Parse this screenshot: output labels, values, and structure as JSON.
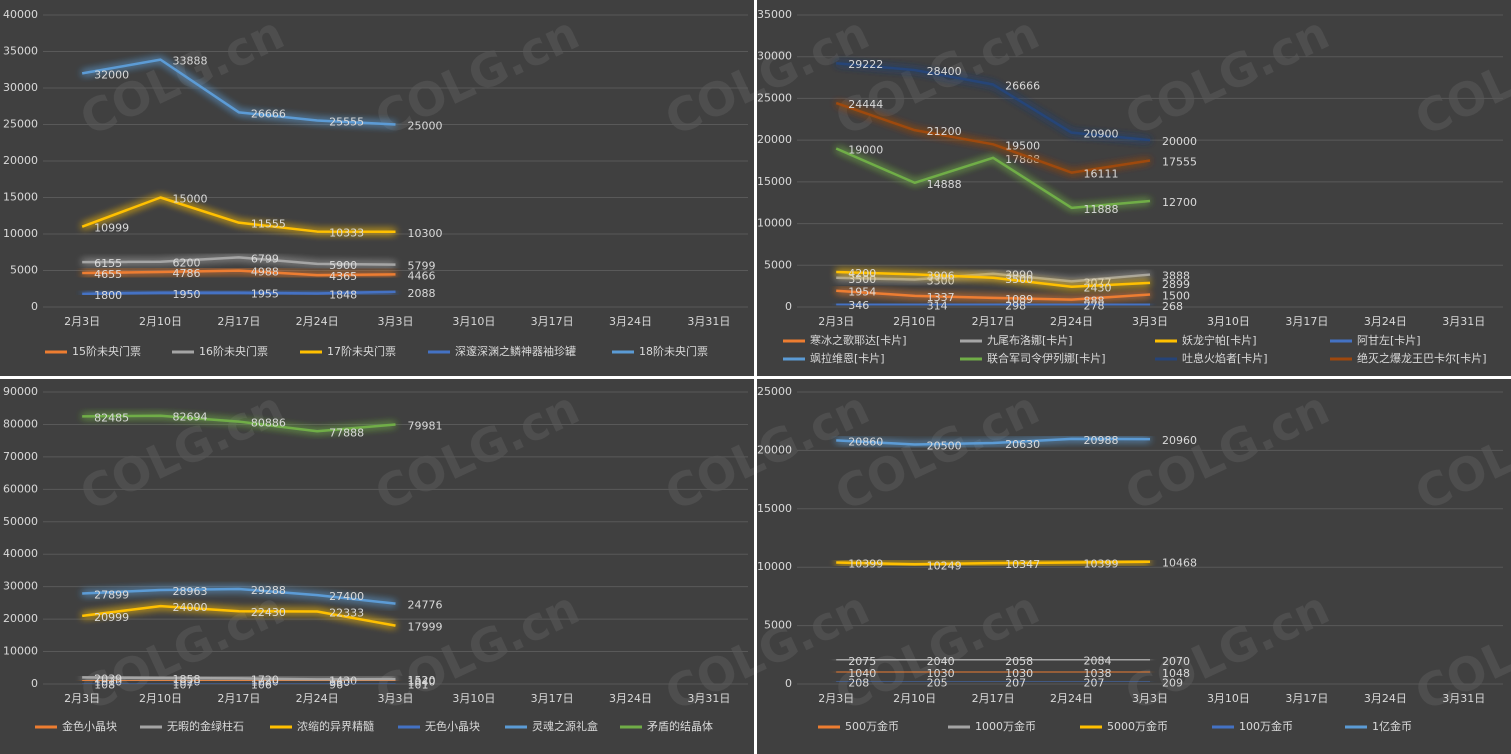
{
  "watermark": "COLG.cn",
  "chart_data": [
    {
      "type": "line",
      "categories": [
        "2月3日",
        "2月10日",
        "2月17日",
        "2月24日",
        "3月3日",
        "3月10日",
        "3月17日",
        "3月24日",
        "3月31日"
      ],
      "ylim": [
        0,
        40000
      ],
      "yticks": [
        0,
        5000,
        10000,
        15000,
        20000,
        25000,
        30000,
        35000,
        40000
      ],
      "grid": true,
      "series": [
        {
          "name": "15阶未央门票",
          "color": "#ed7d31",
          "values": [
            4655,
            4786,
            4988,
            4365,
            4466,
            null,
            null,
            null,
            null
          ]
        },
        {
          "name": "16阶未央门票",
          "color": "#a5a5a5",
          "values": [
            6155,
            6200,
            6799,
            5900,
            5799,
            null,
            null,
            null,
            null
          ]
        },
        {
          "name": "17阶未央门票",
          "color": "#ffc000",
          "values": [
            10999,
            15000,
            11555,
            10333,
            10300,
            null,
            null,
            null,
            null
          ]
        },
        {
          "name": "深邃深渊之鳞神器袖珍罐",
          "color": "#4472c4",
          "values": [
            1800,
            1950,
            1955,
            1848,
            2088,
            null,
            null,
            null,
            null
          ]
        },
        {
          "name": "18阶未央门票",
          "color": "#5b9bd5",
          "values": [
            32000,
            33888,
            26666,
            25555,
            25000,
            null,
            null,
            null,
            null
          ]
        }
      ]
    },
    {
      "type": "line",
      "categories": [
        "2月3日",
        "2月10日",
        "2月17日",
        "2月24日",
        "3月3日",
        "3月10日",
        "3月17日",
        "3月24日",
        "3月31日"
      ],
      "ylim": [
        0,
        35000
      ],
      "yticks": [
        0,
        5000,
        10000,
        15000,
        20000,
        25000,
        30000,
        35000
      ],
      "grid": true,
      "series": [
        {
          "name": "寒冰之歌耶达[卡片]",
          "color": "#ed7d31",
          "values": [
            1954,
            1337,
            1089,
            888,
            1500,
            null,
            null,
            null,
            null
          ]
        },
        {
          "name": "九尾布洛娜[卡片]",
          "color": "#a5a5a5",
          "values": [
            3500,
            3300,
            3990,
            3077,
            3888,
            null,
            null,
            null,
            null
          ]
        },
        {
          "name": "妖龙宁帕[卡片]",
          "color": "#ffc000",
          "values": [
            4200,
            3906,
            3500,
            2430,
            2899,
            null,
            null,
            null,
            null
          ]
        },
        {
          "name": "阿甘左[卡片]",
          "color": "#4472c4",
          "values": [
            346,
            314,
            298,
            278,
            268,
            null,
            null,
            null,
            null
          ]
        },
        {
          "name": "飒拉维恩[卡片]",
          "color": "#5b9bd5",
          "values": [
            null,
            null,
            null,
            null,
            null,
            null,
            null,
            null,
            null
          ]
        },
        {
          "name": "联合军司令伊列娜[卡片]",
          "color": "#70ad47",
          "values": [
            19000,
            14888,
            17888,
            11888,
            12700,
            null,
            null,
            null,
            null
          ]
        },
        {
          "name": "吐息火焰者[卡片]",
          "color": "#264478",
          "values": [
            29222,
            28400,
            26666,
            20900,
            20000,
            null,
            null,
            null,
            null
          ]
        },
        {
          "name": "绝灭之爆龙王巴卡尔[卡片]",
          "color": "#9e480e",
          "values": [
            24444,
            21200,
            19500,
            16111,
            17555,
            null,
            null,
            null,
            null
          ]
        }
      ]
    },
    {
      "type": "line",
      "categories": [
        "2月3日",
        "2月10日",
        "2月17日",
        "2月24日",
        "3月3日",
        "3月10日",
        "3月17日",
        "3月24日",
        "3月31日"
      ],
      "ylim": [
        0,
        90000
      ],
      "yticks": [
        0,
        10000,
        20000,
        30000,
        40000,
        50000,
        60000,
        70000,
        80000,
        90000
      ],
      "grid": true,
      "series": [
        {
          "name": "金色小晶块",
          "color": "#ed7d31",
          "values": [
            1010,
            1020,
            1080,
            980,
            1040,
            null,
            null,
            null,
            null
          ]
        },
        {
          "name": "无暇的金绿柱石",
          "color": "#a5a5a5",
          "values": [
            2039,
            1858,
            1720,
            1430,
            1520,
            null,
            null,
            null,
            null
          ]
        },
        {
          "name": "浓缩的异界精髓",
          "color": "#ffc000",
          "values": [
            20999,
            24000,
            22430,
            22333,
            17999,
            null,
            null,
            null,
            null
          ]
        },
        {
          "name": "无色小晶块",
          "color": "#4472c4",
          "values": [
            108,
            107,
            106,
            96,
            101,
            null,
            null,
            null,
            null
          ]
        },
        {
          "name": "灵魂之源礼盒",
          "color": "#5b9bd5",
          "values": [
            27899,
            28963,
            29288,
            27400,
            24776,
            null,
            null,
            null,
            null
          ]
        },
        {
          "name": "矛盾的结晶体",
          "color": "#70ad47",
          "values": [
            82485,
            82694,
            80886,
            77888,
            79981,
            null,
            null,
            null,
            null
          ]
        }
      ]
    },
    {
      "type": "line",
      "categories": [
        "2月3日",
        "2月10日",
        "2月17日",
        "2月24日",
        "3月3日",
        "3月10日",
        "3月17日",
        "3月24日",
        "3月31日"
      ],
      "ylim": [
        0,
        25000
      ],
      "yticks": [
        0,
        5000,
        10000,
        15000,
        20000,
        25000
      ],
      "grid": true,
      "series": [
        {
          "name": "500万金币",
          "color": "#ed7d31",
          "values": [
            1040,
            1030,
            1030,
            1038,
            1048,
            null,
            null,
            null,
            null
          ]
        },
        {
          "name": "1000万金币",
          "color": "#a5a5a5",
          "values": [
            2075,
            2040,
            2058,
            2084,
            2070,
            null,
            null,
            null,
            null
          ]
        },
        {
          "name": "5000万金币",
          "color": "#ffc000",
          "values": [
            10399,
            10249,
            10347,
            10399,
            10468,
            null,
            null,
            null,
            null
          ]
        },
        {
          "name": "100万金币",
          "color": "#4472c4",
          "values": [
            208,
            205,
            207,
            207,
            209,
            null,
            null,
            null,
            null
          ]
        },
        {
          "name": "1亿金币",
          "color": "#5b9bd5",
          "values": [
            20860,
            20500,
            20630,
            20988,
            20960,
            null,
            null,
            null,
            null
          ]
        }
      ]
    }
  ]
}
